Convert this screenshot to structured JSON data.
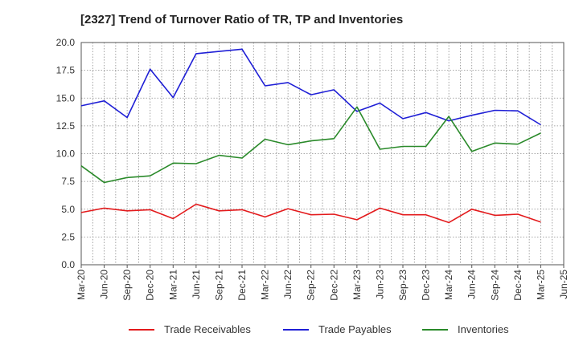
{
  "chart_data": {
    "type": "line",
    "title": "[2327]  Trend of Turnover Ratio of TR, TP and Inventories",
    "xlabel": "",
    "ylabel": "",
    "ylim": [
      0,
      20
    ],
    "yticks": [
      "0.0",
      "2.5",
      "5.0",
      "7.5",
      "10.0",
      "12.5",
      "15.0",
      "17.5",
      "20.0"
    ],
    "xticks": [
      "Mar-20",
      "Jun-20",
      "Sep-20",
      "Dec-20",
      "Mar-21",
      "Jun-21",
      "Sep-21",
      "Dec-21",
      "Mar-22",
      "Jun-22",
      "Sep-22",
      "Dec-22",
      "Mar-23",
      "Jun-23",
      "Sep-23",
      "Dec-23",
      "Mar-24",
      "Jun-24",
      "Sep-24",
      "Dec-24",
      "Mar-25",
      "Jun-25"
    ],
    "x": [
      "Mar-20",
      "Jun-20",
      "Sep-20",
      "Dec-20",
      "Mar-21",
      "Jun-21",
      "Sep-21",
      "Dec-21",
      "Mar-22",
      "Jun-22",
      "Sep-22",
      "Dec-22",
      "Mar-23",
      "Jun-23",
      "Sep-23",
      "Dec-23",
      "Mar-24",
      "Jun-24",
      "Sep-24",
      "Dec-24",
      "Mar-25"
    ],
    "grid": true,
    "legend_position": "bottom",
    "series": [
      {
        "name": "Trade Receivables",
        "color": "#e31a1c",
        "values": [
          4.7,
          5.1,
          4.85,
          4.95,
          4.15,
          5.45,
          4.85,
          4.95,
          4.3,
          5.05,
          4.5,
          4.55,
          4.05,
          5.1,
          4.5,
          4.5,
          3.8,
          5.0,
          4.45,
          4.55,
          3.85
        ]
      },
      {
        "name": "Trade Payables",
        "color": "#1f1fd6",
        "values": [
          14.3,
          14.75,
          13.25,
          17.6,
          15.05,
          19.0,
          19.2,
          19.4,
          16.1,
          16.4,
          15.3,
          15.75,
          13.8,
          14.55,
          13.15,
          13.7,
          12.95,
          13.45,
          13.9,
          13.85,
          12.6
        ]
      },
      {
        "name": "Inventories",
        "color": "#2a8a2a",
        "values": [
          8.9,
          7.4,
          7.85,
          8.0,
          9.15,
          9.1,
          9.85,
          9.6,
          11.3,
          10.8,
          11.15,
          11.35,
          14.2,
          10.4,
          10.65,
          10.65,
          13.35,
          10.2,
          10.95,
          10.85,
          11.85
        ]
      }
    ]
  }
}
